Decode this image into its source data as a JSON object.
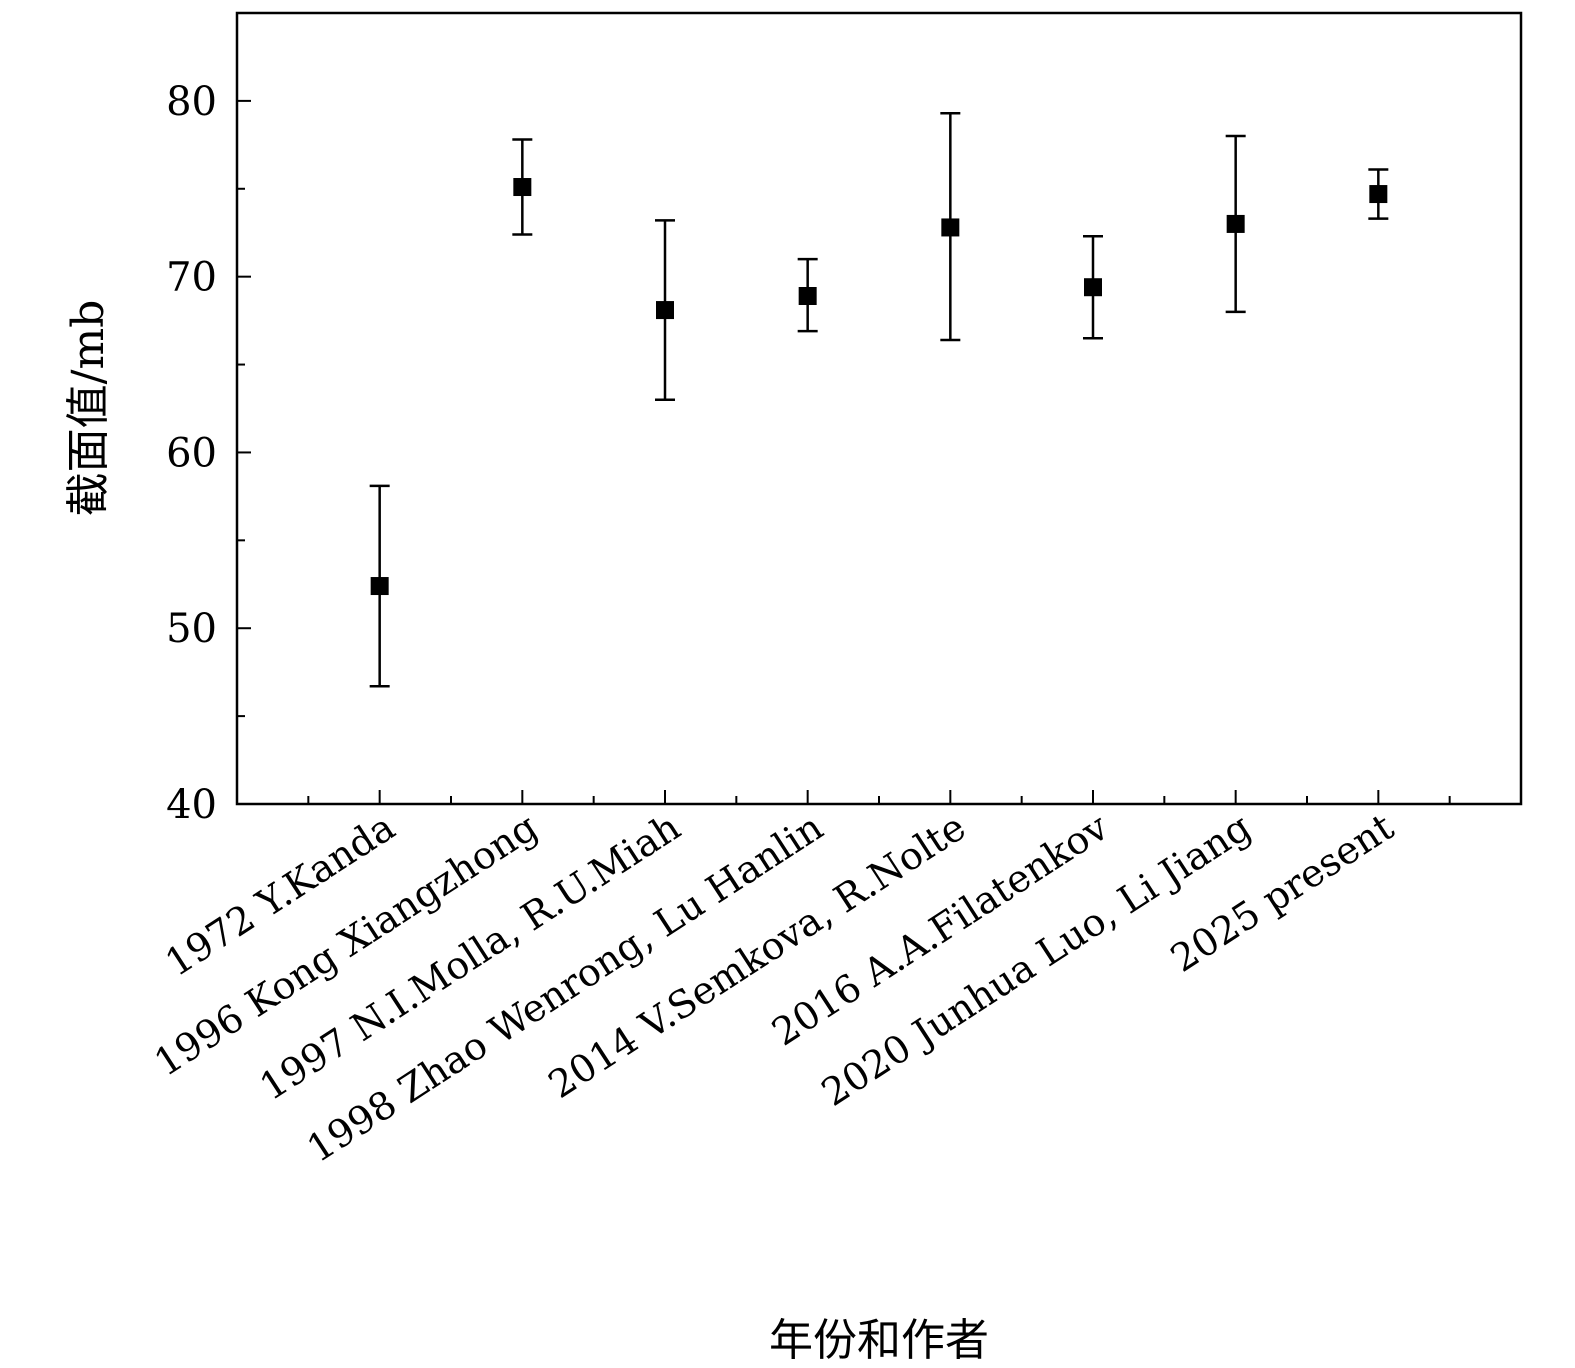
{
  "chart_data": {
    "type": "scatter",
    "title": "",
    "xlabel": "年份和作者",
    "ylabel": "截面值/mb",
    "ylim": [
      40,
      85
    ],
    "yticks": [
      40,
      50,
      60,
      70,
      80
    ],
    "grid": false,
    "categories": [
      "1972 Y.Kanda",
      "1996 Kong Xiangzhong",
      "1997 N.I.Molla, R.U.Miah",
      "1998 Zhao Wenrong, Lu Hanlin",
      "2014 V.Semkova, R.Nolte",
      "2016 A.A.Filatenkov",
      "2020 Junhua Luo, Li Jiang",
      "2025 present"
    ],
    "series": [
      {
        "values": [
          52.4,
          75.1,
          68.1,
          68.9,
          72.8,
          69.4,
          73.0,
          74.7
        ],
        "error_low": [
          46.7,
          72.4,
          63.0,
          66.9,
          66.4,
          66.5,
          68.0,
          73.3
        ],
        "error_high": [
          58.1,
          77.8,
          73.2,
          71.0,
          79.3,
          72.3,
          78.0,
          76.1
        ],
        "color": "#000000",
        "marker": "square"
      }
    ]
  }
}
